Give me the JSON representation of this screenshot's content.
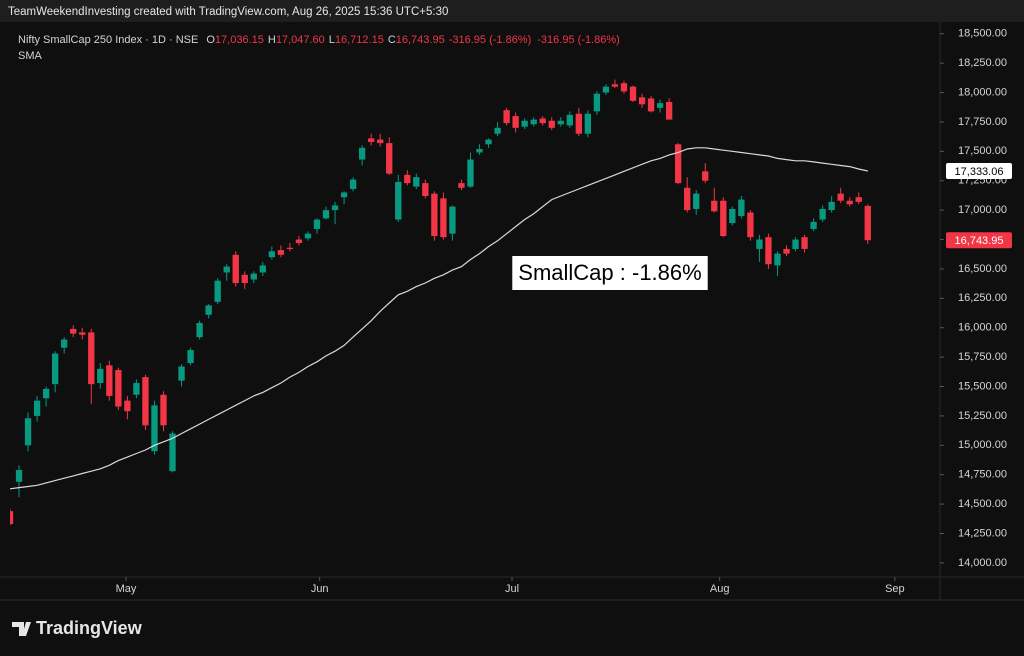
{
  "header": "TeamWeekendInvesting created with TradingView.com, Aug 26, 2025 15:36 UTC+5:30",
  "footer": "TradingView",
  "chart_data": {
    "type": "candlestick",
    "title": "Nifty SmallCap 250 Index · 1D · NSE",
    "legend_ohlc": [
      {
        "key": "O",
        "label": "17,036.15"
      },
      {
        "key": "H",
        "label": "17,047.60"
      },
      {
        "key": "L",
        "label": "16,712.15"
      },
      {
        "key": "C",
        "label": "16,743.95"
      }
    ],
    "change_labels": [
      "-316.95 (-1.86%)",
      "-316.95 (-1.86%)"
    ],
    "annotation": "SmallCap : -1.86%",
    "up_color": "#089981",
    "down_color": "#f23645",
    "xlim": [
      0,
      103
    ],
    "xticks": [
      {
        "value": 12.85,
        "label": "May"
      },
      {
        "value": 34.3,
        "label": "Jun"
      },
      {
        "value": 55.6,
        "label": "Jul"
      },
      {
        "value": 78.6,
        "label": "Aug"
      },
      {
        "value": 98,
        "label": "Sep"
      }
    ],
    "ylim": [
      13880,
      18600
    ],
    "yticks": [
      {
        "value": 14000,
        "label": "14,000.00"
      },
      {
        "value": 14250,
        "label": "14,250.00"
      },
      {
        "value": 14500,
        "label": "14,500.00"
      },
      {
        "value": 14750,
        "label": "14,750.00"
      },
      {
        "value": 15000,
        "label": "15,000.00"
      },
      {
        "value": 15250,
        "label": "15,250.00"
      },
      {
        "value": 15500,
        "label": "15,500.00"
      },
      {
        "value": 15750,
        "label": "15,750.00"
      },
      {
        "value": 16000,
        "label": "16,000.00"
      },
      {
        "value": 16250,
        "label": "16,250.00"
      },
      {
        "value": 16500,
        "label": "16,500.00"
      },
      {
        "value": 16750,
        "label": "16,750.00"
      },
      {
        "value": 17000,
        "label": "17,000.00"
      },
      {
        "value": 17250,
        "label": "17,250.00"
      },
      {
        "value": 17500,
        "label": "17,500.00"
      },
      {
        "value": 17750,
        "label": "17,750.00"
      },
      {
        "value": 18000,
        "label": "18,000.00"
      },
      {
        "value": 18250,
        "label": "18,250.00"
      },
      {
        "value": 18500,
        "label": "18,500.00"
      }
    ],
    "open": [
      14440,
      14690,
      15000,
      15250,
      15400,
      15520,
      15830,
      15990,
      15960,
      15960,
      15530,
      15680,
      15640,
      15380,
      15430,
      15580,
      14950,
      15430,
      14780,
      15550,
      15700,
      15920,
      16110,
      16220,
      16470,
      16620,
      16450,
      16410,
      16470,
      16600,
      16660,
      16680,
      16750,
      16760,
      16840,
      16930,
      17000,
      17110,
      17180,
      17430,
      17610,
      17600,
      17570,
      16920,
      17300,
      17200,
      17230,
      17140,
      17100,
      16800,
      17230,
      17200,
      17490,
      17560,
      17650,
      17850,
      17800,
      17710,
      17730,
      17780,
      17760,
      17730,
      17720,
      17820,
      17650,
      17840,
      18000,
      18070,
      18080,
      18050,
      17960,
      17950,
      17870,
      17920,
      17560,
      17190,
      17010,
      17330,
      17080,
      17080,
      16890,
      16950,
      16980,
      16670,
      16770,
      16530,
      16670,
      16670,
      16770,
      16840,
      16920,
      17000,
      17140,
      17080,
      17110,
      17036.15
    ],
    "high": [
      14460,
      14830,
      15280,
      15420,
      15500,
      15800,
      15920,
      16020,
      16000,
      15990,
      15700,
      15720,
      15660,
      15420,
      15560,
      15600,
      15380,
      15460,
      15120,
      15690,
      15830,
      16060,
      16200,
      16420,
      16540,
      16650,
      16480,
      16480,
      16560,
      16690,
      16700,
      16720,
      16780,
      16820,
      16930,
      17030,
      17070,
      17160,
      17280,
      17550,
      17650,
      17650,
      17620,
      17300,
      17340,
      17310,
      17260,
      17160,
      17150,
      17040,
      17260,
      17490,
      17560,
      17610,
      17750,
      17870,
      17830,
      17780,
      17790,
      17800,
      17790,
      17790,
      17840,
      17870,
      17850,
      18010,
      18070,
      18110,
      18100,
      18060,
      17990,
      17970,
      17940,
      17950,
      17570,
      17280,
      17170,
      17400,
      17190,
      17110,
      17030,
      17120,
      17000,
      16790,
      16800,
      16650,
      16700,
      16770,
      16790,
      16930,
      17040,
      17120,
      17190,
      17110,
      17150,
      17047.6
    ],
    "low": [
      14320,
      14560,
      14950,
      15200,
      15330,
      15450,
      15780,
      15920,
      15900,
      15350,
      15480,
      15380,
      15300,
      15220,
      15400,
      15130,
      14920,
      15120,
      14770,
      15500,
      15680,
      15900,
      16080,
      16200,
      16400,
      16350,
      16330,
      16380,
      16440,
      16580,
      16600,
      16650,
      16700,
      16740,
      16800,
      16920,
      16880,
      17050,
      17160,
      17380,
      17550,
      17540,
      17300,
      16900,
      17210,
      17180,
      17100,
      16740,
      16750,
      16740,
      17170,
      17190,
      17470,
      17530,
      17630,
      17720,
      17660,
      17690,
      17710,
      17720,
      17680,
      17710,
      17700,
      17630,
      17620,
      17810,
      17980,
      18040,
      17990,
      17920,
      17870,
      17830,
      17830,
      17770,
      17220,
      16980,
      16960,
      17230,
      16980,
      16770,
      16870,
      16930,
      16740,
      16560,
      16500,
      16440,
      16610,
      16650,
      16640,
      16820,
      16900,
      16980,
      17060,
      17030,
      17050,
      16712.15
    ],
    "close": [
      14330,
      14790,
      15230,
      15380,
      15480,
      15780,
      15900,
      15950,
      15940,
      15520,
      15650,
      15420,
      15330,
      15290,
      15530,
      15170,
      15340,
      15170,
      15100,
      15670,
      15810,
      16040,
      16190,
      16400,
      16520,
      16380,
      16380,
      16460,
      16530,
      16650,
      16620,
      16670,
      16720,
      16800,
      16920,
      17000,
      17040,
      17150,
      17260,
      17530,
      17580,
      17570,
      17310,
      17240,
      17230,
      17280,
      17120,
      16780,
      16770,
      17030,
      17190,
      17430,
      17520,
      17600,
      17700,
      17740,
      17700,
      17760,
      17770,
      17740,
      17700,
      17760,
      17810,
      17650,
      17820,
      17990,
      18050,
      18050,
      18010,
      17930,
      17900,
      17840,
      17910,
      17770,
      17230,
      17000,
      17140,
      17250,
      16990,
      16780,
      17010,
      17090,
      16770,
      16750,
      16540,
      16630,
      16630,
      16750,
      16670,
      16900,
      17010,
      17070,
      17080,
      17050,
      17070,
      16743.95
    ],
    "sma": {
      "name": "SMA",
      "color": "#d9d9d9",
      "values": [
        14630,
        14640,
        14650,
        14660,
        14680,
        14700,
        14720,
        14740,
        14760,
        14780,
        14800,
        14830,
        14870,
        14900,
        14930,
        14960,
        15000,
        15030,
        15060,
        15100,
        15140,
        15180,
        15220,
        15260,
        15300,
        15340,
        15380,
        15420,
        15450,
        15490,
        15530,
        15580,
        15620,
        15670,
        15710,
        15760,
        15800,
        15850,
        15920,
        15990,
        16060,
        16140,
        16210,
        16280,
        16310,
        16350,
        16380,
        16420,
        16450,
        16490,
        16520,
        16580,
        16630,
        16690,
        16740,
        16800,
        16860,
        16920,
        16970,
        17030,
        17090,
        17120,
        17150,
        17180,
        17210,
        17240,
        17270,
        17300,
        17330,
        17360,
        17390,
        17420,
        17440,
        17470,
        17490,
        17520,
        17530,
        17530,
        17520,
        17510,
        17500,
        17490,
        17480,
        17470,
        17460,
        17440,
        17430,
        17420,
        17420,
        17410,
        17400,
        17390,
        17380,
        17370,
        17350,
        17333.06
      ]
    },
    "price_tags": [
      {
        "value": 17333.06,
        "label": "17,333.06",
        "color": "#ffffff"
      },
      {
        "value": 16743.95,
        "label": "16,743.95",
        "color": "#f23645"
      }
    ]
  }
}
